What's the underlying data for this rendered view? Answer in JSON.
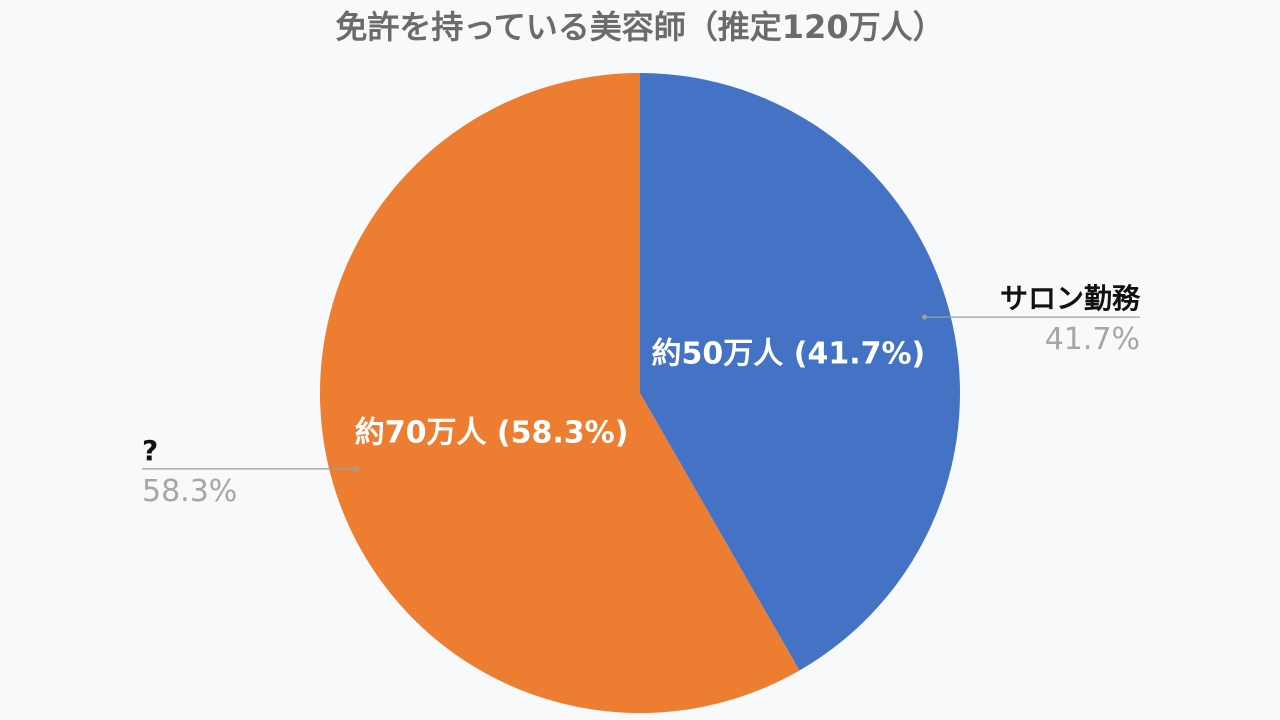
{
  "chart_data": {
    "type": "pie",
    "title": "免許を持っている美容師（推定120万人）",
    "slices": [
      {
        "name": "サロン勤務",
        "value": 41.7,
        "inner_label": "約50万人 (41.7%)",
        "outer_percent_label": "41.7%",
        "color": "#4472c4",
        "callout_side": "right"
      },
      {
        "name": "?",
        "value": 58.3,
        "inner_label": "約70万人 (58.3%)",
        "outer_percent_label": "58.3%",
        "color": "#ed7d31",
        "callout_side": "left"
      }
    ],
    "start_angle": "12 o'clock",
    "direction": "clockwise",
    "legend": "none"
  }
}
